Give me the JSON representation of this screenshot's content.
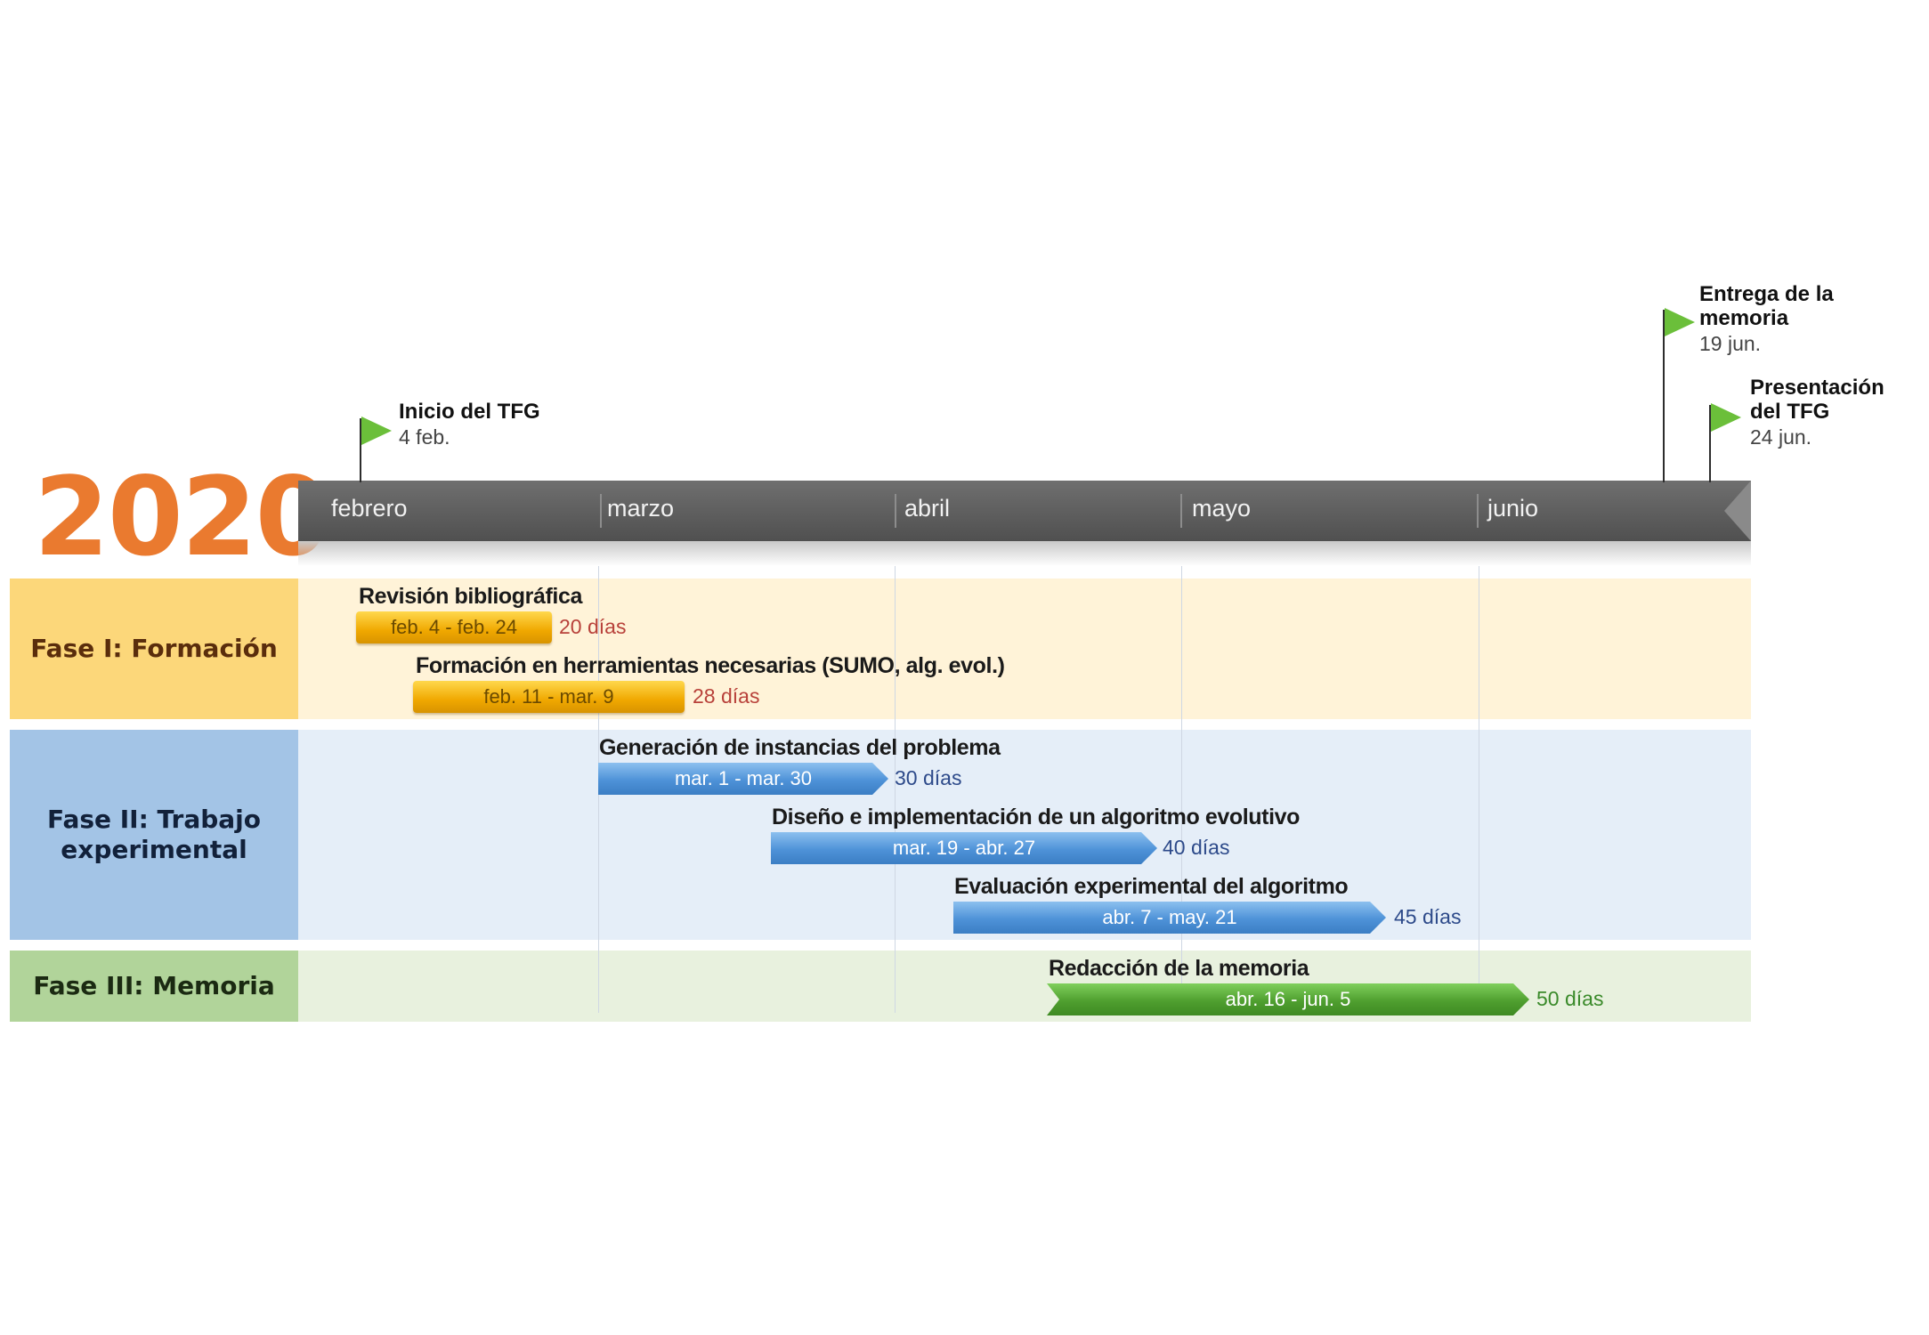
{
  "year": "2020",
  "months": [
    "febrero",
    "marzo",
    "abril",
    "mayo",
    "junio"
  ],
  "phases": [
    {
      "label": "Fase I: Formación",
      "tasks": [
        {
          "title": "Revisión bibliográfica",
          "dates": "feb. 4 - feb. 24",
          "duration": "20 días"
        },
        {
          "title": "Formación en herramientas necesarias (SUMO, alg. evol.)",
          "dates": "feb. 11 - mar. 9",
          "duration": "28 días"
        }
      ]
    },
    {
      "label": "Fase II: Trabajo experimental",
      "tasks": [
        {
          "title": "Generación de instancias del problema",
          "dates": "mar. 1 - mar. 30",
          "duration": "30 días"
        },
        {
          "title": "Diseño e implementación de un algoritmo evolutivo",
          "dates": "mar. 19 - abr. 27",
          "duration": "40 días"
        },
        {
          "title": "Evaluación experimental del algoritmo",
          "dates": "abr. 7 - may. 21",
          "duration": "45 días"
        }
      ]
    },
    {
      "label": "Fase III: Memoria",
      "tasks": [
        {
          "title": "Redacción de la memoria",
          "dates": "abr. 16 - jun. 5",
          "duration": "50 días"
        }
      ]
    }
  ],
  "milestones": [
    {
      "title": "Inicio del TFG",
      "date": "4 feb."
    },
    {
      "title": "Entrega de la memoria",
      "date": "19 jun."
    },
    {
      "title": "Presentación del TFG",
      "date": "24 jun."
    }
  ],
  "colors": {
    "year": "#ea7a2f",
    "phase1_label_bg": "#fcd77a",
    "phase1_band_bg": "#fff3d8",
    "phase1_label_text": "#5a2d0c",
    "phase2_label_bg": "#a3c4e6",
    "phase2_band_bg": "#e5eef8",
    "phase2_label_text": "#12213a",
    "phase3_label_bg": "#b1d49a",
    "phase3_band_bg": "#e8f1de",
    "phase3_label_text": "#1b2a12",
    "phase1_duration_text": "#b8413a",
    "phase2_duration_text": "#2d4a8a",
    "phase3_duration_text": "#3a8a2a",
    "milestone_flag": "#6bbf3a"
  }
}
